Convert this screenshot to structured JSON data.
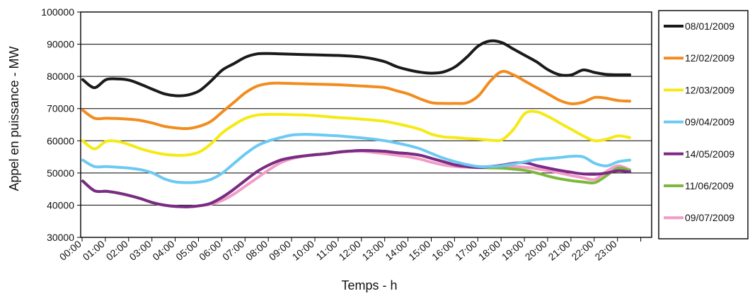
{
  "chart_data": {
    "type": "line",
    "xlabel": "Temps  -  h",
    "ylabel": "Appel en puissance  -  MW",
    "ylim": [
      30000,
      100000
    ],
    "ytick_labels": [
      "30000",
      "40000",
      "50000",
      "60000",
      "70000",
      "80000",
      "90000",
      "100000"
    ],
    "xtick_labels": [
      "00:00",
      "01:00",
      "02:00",
      "03:00",
      "04:00",
      "05:00",
      "06:00",
      "07:00",
      "08:00",
      "09:00",
      "10:00",
      "11:00",
      "12:00",
      "13:00",
      "14:00",
      "15:00",
      "16:00",
      "17:00",
      "18:00",
      "19:00",
      "20:00",
      "21:00",
      "22:00",
      "23:00"
    ],
    "grid": true,
    "legend_position": "right",
    "x": [
      "00:00",
      "00:30",
      "01:00",
      "01:30",
      "02:00",
      "02:30",
      "03:00",
      "03:30",
      "04:00",
      "04:30",
      "05:00",
      "05:30",
      "06:00",
      "06:30",
      "07:00",
      "07:30",
      "08:00",
      "08:30",
      "09:00",
      "09:30",
      "10:00",
      "10:30",
      "11:00",
      "11:30",
      "12:00",
      "12:30",
      "13:00",
      "13:30",
      "14:00",
      "14:30",
      "15:00",
      "15:30",
      "16:00",
      "16:30",
      "17:00",
      "17:30",
      "18:00",
      "18:30",
      "19:00",
      "19:30",
      "20:00",
      "20:30",
      "21:00",
      "21:30",
      "22:00",
      "22:30",
      "23:00",
      "23:30"
    ],
    "series": [
      {
        "name": "08/01/2009",
        "color": "#1a1a1a",
        "values": [
          79000,
          76500,
          79000,
          79200,
          78800,
          77500,
          76000,
          74600,
          74000,
          74200,
          75500,
          78500,
          82000,
          84000,
          86000,
          87000,
          87100,
          87000,
          86900,
          86800,
          86700,
          86600,
          86500,
          86300,
          86000,
          85400,
          84500,
          83000,
          82000,
          81300,
          81000,
          81400,
          83000,
          86000,
          89500,
          91000,
          90500,
          88500,
          86500,
          84500,
          82000,
          80500,
          80500,
          82000,
          81200,
          80600,
          80500,
          80500
        ]
      },
      {
        "name": "12/02/2009",
        "color": "#f28c1e",
        "values": [
          69500,
          67000,
          67000,
          66900,
          66700,
          66300,
          65500,
          64500,
          64000,
          63800,
          64500,
          66000,
          69000,
          72000,
          75000,
          77000,
          77800,
          77900,
          77800,
          77700,
          77600,
          77500,
          77400,
          77200,
          77000,
          76800,
          76500,
          75500,
          74500,
          73000,
          71800,
          71600,
          71600,
          71800,
          74000,
          78500,
          81500,
          80500,
          78500,
          76500,
          74500,
          72500,
          71500,
          72000,
          73500,
          73200,
          72500,
          72300
        ]
      },
      {
        "name": "12/03/2009",
        "color": "#f5ea14",
        "values": [
          60000,
          57500,
          59800,
          59800,
          58800,
          57500,
          56500,
          55800,
          55500,
          55600,
          56500,
          59000,
          62500,
          65000,
          67000,
          68000,
          68200,
          68200,
          68100,
          68000,
          67800,
          67500,
          67200,
          67000,
          66700,
          66400,
          66000,
          65300,
          64500,
          63500,
          62000,
          61200,
          61000,
          60700,
          60500,
          60200,
          60300,
          63500,
          68500,
          69000,
          67500,
          65500,
          63500,
          61500,
          60000,
          60500,
          61500,
          61000
        ]
      },
      {
        "name": "09/04/2009",
        "color": "#6ccaf2",
        "values": [
          54000,
          52000,
          52000,
          51800,
          51500,
          51000,
          50000,
          48200,
          47200,
          47000,
          47200,
          48000,
          50000,
          53000,
          56000,
          58500,
          60000,
          61000,
          61800,
          62000,
          61900,
          61700,
          61500,
          61200,
          60900,
          60500,
          60000,
          59300,
          58500,
          57500,
          56000,
          54600,
          53500,
          52600,
          52000,
          52000,
          52200,
          52800,
          53500,
          54200,
          54500,
          54800,
          55200,
          55000,
          53000,
          52200,
          53500,
          54000
        ]
      },
      {
        "name": "14/05/2009",
        "color": "#7b2a86",
        "values": [
          47500,
          44500,
          44300,
          43800,
          43000,
          42000,
          40800,
          40000,
          39600,
          39500,
          39800,
          40600,
          42500,
          45000,
          47800,
          50500,
          52500,
          54000,
          54800,
          55300,
          55700,
          56000,
          56500,
          56800,
          57000,
          56900,
          56700,
          56300,
          56000,
          55500,
          54500,
          53500,
          52500,
          52000,
          51700,
          52000,
          52400,
          53000,
          53200,
          52300,
          51500,
          50800,
          50200,
          49700,
          49600,
          50000,
          50700,
          50300
        ]
      },
      {
        "name": "11/06/2009",
        "color": "#7cb83b",
        "values": [
          47500,
          44500,
          44300,
          43800,
          43000,
          42000,
          40800,
          40000,
          39600,
          39500,
          39800,
          40600,
          42500,
          45000,
          47800,
          50500,
          52500,
          54000,
          54800,
          55300,
          55700,
          56000,
          56500,
          56800,
          57000,
          56900,
          56700,
          56300,
          56000,
          55500,
          54500,
          53500,
          52500,
          52000,
          51700,
          51600,
          51500,
          51200,
          50800,
          50000,
          49000,
          48200,
          47600,
          47200,
          47000,
          49200,
          51500,
          50800
        ]
      },
      {
        "name": "09/07/2009",
        "color": "#f29cc7",
        "values": [
          47500,
          44500,
          44300,
          43800,
          43000,
          42000,
          40800,
          40000,
          39600,
          39500,
          39800,
          40300,
          41500,
          43500,
          46000,
          48500,
          51000,
          53200,
          54500,
          55200,
          55600,
          56000,
          56400,
          56700,
          56700,
          56400,
          56000,
          55500,
          55000,
          54300,
          53300,
          52500,
          52000,
          51800,
          51700,
          51700,
          51900,
          52000,
          51800,
          51300,
          50700,
          50000,
          49200,
          48500,
          48000,
          50500,
          52200,
          51000
        ]
      }
    ]
  }
}
